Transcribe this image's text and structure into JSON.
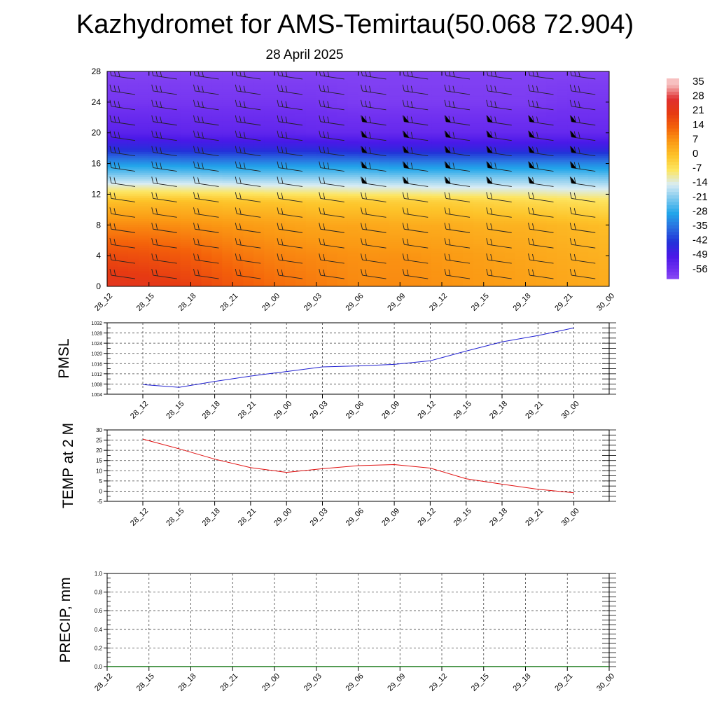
{
  "title": "Kazhydromet for AMS-Temirtau(50.068 72.904)",
  "subtitle": "28 April 2025",
  "chart_data": [
    {
      "type": "heatmap",
      "name": "temperature-wind-cross-section",
      "y_ticks": [
        0,
        4,
        8,
        12,
        16,
        20,
        24,
        28
      ],
      "ylim": [
        0,
        28
      ],
      "x_ticks": [
        "28_12",
        "28_15",
        "28_18",
        "28_21",
        "29_00",
        "29_03",
        "29_06",
        "29_09",
        "29_12",
        "29_15",
        "29_18",
        "29_21",
        "30_00"
      ],
      "colorbar": {
        "labels": [
          "35",
          "28",
          "21",
          "14",
          "7",
          "0",
          "-7",
          "-14",
          "-21",
          "-28",
          "-35",
          "-42",
          "-49",
          "-56"
        ],
        "stops": [
          {
            "v": 35,
            "color": "#f7c0c0"
          },
          {
            "v": 28,
            "color": "#e03030"
          },
          {
            "v": 21,
            "color": "#e63a12"
          },
          {
            "v": 14,
            "color": "#f4620a"
          },
          {
            "v": 7,
            "color": "#fb9a14"
          },
          {
            "v": 0,
            "color": "#fdc42a"
          },
          {
            "v": -7,
            "color": "#fde662"
          },
          {
            "v": -14,
            "color": "#d8ecf4"
          },
          {
            "v": -21,
            "color": "#7cc8ee"
          },
          {
            "v": -28,
            "color": "#22a6ea"
          },
          {
            "v": -35,
            "color": "#2a6ee0"
          },
          {
            "v": -42,
            "color": "#2232d8"
          },
          {
            "v": -49,
            "color": "#4a18e8"
          },
          {
            "v": -56,
            "color": "#7030f0"
          },
          {
            "v": -60,
            "color": "#8848f4"
          }
        ]
      },
      "temperature_profile": [
        {
          "level": 0,
          "temps": [
            24,
            23,
            20,
            16,
            13,
            11,
            9,
            9,
            8,
            7,
            6,
            5,
            4
          ]
        },
        {
          "level": 4,
          "temps": [
            18,
            17,
            15,
            12,
            10,
            9,
            8,
            8,
            7,
            6,
            5,
            4,
            3
          ]
        },
        {
          "level": 8,
          "temps": [
            9,
            9,
            8,
            7,
            6,
            5,
            5,
            4,
            4,
            3,
            3,
            2,
            1
          ]
        },
        {
          "level": 11,
          "temps": [
            1,
            1,
            1,
            0,
            0,
            -1,
            -1,
            -2,
            -2,
            -3,
            -4,
            -5,
            -6
          ]
        },
        {
          "level": 12.5,
          "temps": [
            -8,
            -8,
            -9,
            -9,
            -10,
            -10,
            -11,
            -11,
            -12,
            -12,
            -12,
            -13,
            -13
          ]
        },
        {
          "level": 14,
          "temps": [
            -18,
            -18,
            -18,
            -19,
            -19,
            -19,
            -19,
            -20,
            -20,
            -20,
            -20,
            -20,
            -21
          ]
        },
        {
          "level": 16,
          "temps": [
            -30,
            -30,
            -31,
            -31,
            -31,
            -31,
            -31,
            -32,
            -32,
            -32,
            -32,
            -32,
            -32
          ]
        },
        {
          "level": 18,
          "temps": [
            -44,
            -44,
            -45,
            -45,
            -45,
            -45,
            -46,
            -46,
            -46,
            -46,
            -46,
            -46,
            -46
          ]
        },
        {
          "level": 20,
          "temps": [
            -52,
            -52,
            -53,
            -53,
            -53,
            -54,
            -54,
            -54,
            -54,
            -54,
            -54,
            -54,
            -54
          ]
        },
        {
          "level": 24,
          "temps": [
            -57,
            -57,
            -57,
            -57,
            -57,
            -57,
            -58,
            -58,
            -58,
            -58,
            -58,
            -57,
            -57
          ]
        },
        {
          "level": 28,
          "temps": [
            -59,
            -59,
            -59,
            -59,
            -59,
            -59,
            -59,
            -59,
            -59,
            -59,
            -59,
            -59,
            -59
          ]
        }
      ],
      "wind_barbs": {
        "levels": [
          1,
          3,
          5,
          7,
          9,
          11,
          13,
          15,
          17,
          19,
          21,
          23,
          25,
          27
        ],
        "pennant_cols": [
          6,
          7,
          8,
          9,
          10,
          11,
          12
        ]
      }
    },
    {
      "type": "line",
      "name": "PMSL",
      "ylabel": "PMSL",
      "ylim": [
        1004,
        1032
      ],
      "y_ticks": [
        "1004",
        "1008",
        "1012",
        "1016",
        "1020",
        "1024",
        "1028",
        "1032"
      ],
      "x_ticks": [
        "28_12",
        "28_15",
        "28_18",
        "28_21",
        "29_00",
        "29_03",
        "29_06",
        "29_09",
        "29_12",
        "29_15",
        "29_18",
        "29_21",
        "30_00"
      ],
      "x": [
        "28_12",
        "28_15",
        "28_18",
        "28_21",
        "29_00",
        "29_03",
        "29_06",
        "29_09",
        "29_12",
        "29_15",
        "29_18",
        "29_21",
        "30_00"
      ],
      "values": [
        1007.8,
        1006.7,
        1009.0,
        1011.1,
        1012.9,
        1014.7,
        1015.1,
        1015.7,
        1017.1,
        1020.9,
        1024.5,
        1027.0,
        1030.0
      ],
      "color": "#2020d0"
    },
    {
      "type": "line",
      "name": "TEMP at 2 M",
      "ylabel": "TEMP at 2 M",
      "ylim": [
        -5,
        30
      ],
      "y_ticks": [
        "-5",
        "0",
        "5",
        "10",
        "15",
        "20",
        "25",
        "30"
      ],
      "x_ticks": [
        "28_12",
        "28_15",
        "28_18",
        "28_21",
        "29_00",
        "29_03",
        "29_06",
        "29_09",
        "29_12",
        "29_15",
        "29_18",
        "29_21",
        "30_00"
      ],
      "x": [
        "28_12",
        "28_15",
        "28_18",
        "28_21",
        "29_00",
        "29_03",
        "29_06",
        "29_09",
        "29_12",
        "29_15",
        "29_18",
        "29_21",
        "30_00"
      ],
      "values": [
        25.5,
        20.8,
        15.7,
        11.5,
        9.2,
        11.0,
        12.5,
        13.0,
        11.3,
        6.1,
        3.4,
        0.9,
        -0.8
      ],
      "color": "#e01010"
    },
    {
      "type": "line",
      "name": "PRECIP, mm",
      "ylabel": "PRECIP, mm",
      "ylim": [
        0,
        1
      ],
      "y_ticks": [
        "0.0",
        "0.2",
        "0.4",
        "0.6",
        "0.8",
        "1.0"
      ],
      "x_ticks": [
        "28_12",
        "28_15",
        "28_18",
        "28_21",
        "29_00",
        "29_03",
        "29_06",
        "29_09",
        "29_12",
        "29_15",
        "29_18",
        "29_21",
        "30_00"
      ],
      "x": [
        "28_12",
        "28_15",
        "28_18",
        "28_21",
        "29_00",
        "29_03",
        "29_06",
        "29_09",
        "29_12",
        "29_15",
        "29_18",
        "29_21",
        "30_00"
      ],
      "values": [
        0,
        0,
        0,
        0,
        0,
        0,
        0,
        0,
        0,
        0,
        0,
        0,
        0
      ],
      "color": "#1a7a1a"
    }
  ]
}
